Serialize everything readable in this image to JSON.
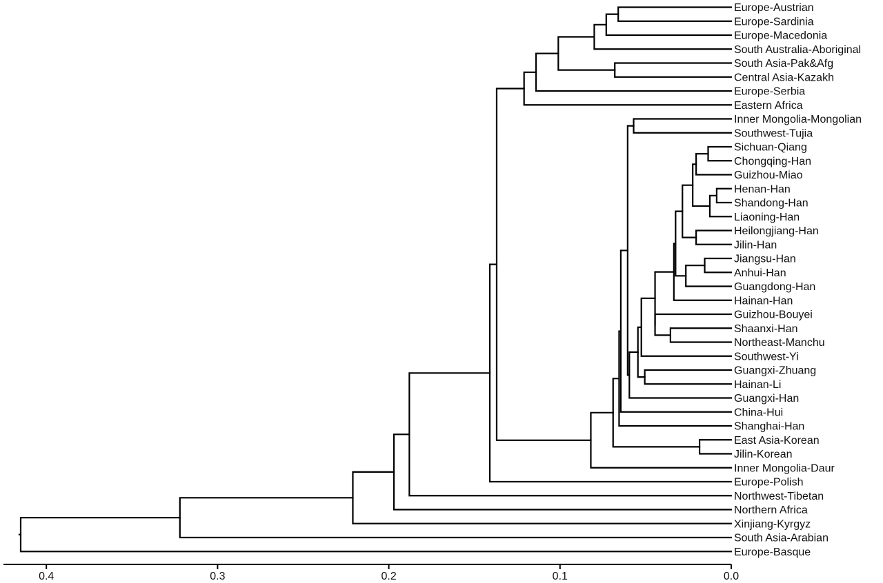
{
  "chart_data": {
    "type": "dendrogram",
    "orientation": "leaves-right",
    "colors": {
      "line": "#000000",
      "text": "#111111",
      "background": "#ffffff"
    },
    "axis": {
      "direction": "reversed",
      "range": [
        0.42,
        0.0
      ],
      "ticks": [
        0.4,
        0.3,
        0.2,
        0.1,
        0.0
      ],
      "tick_labels": [
        "0.4",
        "0.3",
        "0.2",
        "0.1",
        "0.0"
      ]
    },
    "leaves": [
      "Europe-Austrian",
      "Europe-Sardinia",
      "Europe-Macedonia",
      "South Australia-Aboriginal",
      "South Asia-Pak&Afg",
      "Central Asia-Kazakh",
      "Europe-Serbia",
      "Eastern Africa",
      "Inner Mongolia-Mongolian",
      "Southwest-Tujia",
      "Sichuan-Qiang",
      "Chongqing-Han",
      "Guizhou-Miao",
      "Henan-Han",
      "Shandong-Han",
      "Liaoning-Han",
      "Heilongjiang-Han",
      "Jilin-Han",
      "Jiangsu-Han",
      "Anhui-Han",
      "Guangdong-Han",
      "Hainan-Han",
      "Guizhou-Bouyei",
      "Shaanxi-Han",
      "Northeast-Manchu",
      "Southwest-Yi",
      "Guangxi-Zhuang",
      "Hainan-Li",
      "Guangxi-Han",
      "China-Hui",
      "Shanghai-Han",
      "East Asia-Korean",
      "Jilin-Korean",
      "Inner Mongolia-Daur",
      "Europe-Polish",
      "Northwest-Tibetan",
      "Northern Africa",
      "Xinjiang-Kyrgyz",
      "South Asia-Arabian",
      "Europe-Basque"
    ],
    "merges": [
      {
        "id": "n1",
        "height": 0.066,
        "children": [
          "L0",
          "L1"
        ]
      },
      {
        "id": "n2",
        "height": 0.073,
        "children": [
          "n1",
          "L2"
        ]
      },
      {
        "id": "n3",
        "height": 0.08,
        "children": [
          "n2",
          "L3"
        ]
      },
      {
        "id": "n4",
        "height": 0.068,
        "children": [
          "L4",
          "L5"
        ]
      },
      {
        "id": "n5",
        "height": 0.101,
        "children": [
          "n3",
          "n4"
        ]
      },
      {
        "id": "n6",
        "height": 0.114,
        "children": [
          "n5",
          "L6"
        ]
      },
      {
        "id": "n7",
        "height": 0.121,
        "children": [
          "n6",
          "L7"
        ]
      },
      {
        "id": "n8",
        "height": 0.057,
        "children": [
          "L8",
          "L9"
        ]
      },
      {
        "id": "n9",
        "height": 0.0135,
        "children": [
          "L10",
          "L11"
        ]
      },
      {
        "id": "n10",
        "height": 0.0205,
        "children": [
          "n9",
          "L12"
        ]
      },
      {
        "id": "n11",
        "height": 0.0085,
        "children": [
          "L13",
          "L14"
        ]
      },
      {
        "id": "n12",
        "height": 0.0125,
        "children": [
          "n11",
          "L15"
        ]
      },
      {
        "id": "n13",
        "height": 0.0225,
        "children": [
          "n10",
          "n12"
        ]
      },
      {
        "id": "n14",
        "height": 0.0205,
        "children": [
          "L16",
          "L17"
        ]
      },
      {
        "id": "n15",
        "height": 0.0285,
        "children": [
          "n13",
          "n14"
        ]
      },
      {
        "id": "n16",
        "height": 0.0155,
        "children": [
          "L18",
          "L19"
        ]
      },
      {
        "id": "n17",
        "height": 0.0265,
        "children": [
          "n16",
          "L20"
        ]
      },
      {
        "id": "n18",
        "height": 0.0325,
        "children": [
          "n15",
          "n17"
        ]
      },
      {
        "id": "n19",
        "height": 0.0335,
        "children": [
          "n18",
          "L21"
        ]
      },
      {
        "id": "n20",
        "height": 0.0355,
        "children": [
          "L23",
          "L24"
        ]
      },
      {
        "id": "n21",
        "height": 0.0445,
        "children": [
          "L22",
          "n20"
        ]
      },
      {
        "id": "n22",
        "height": 0.0445,
        "children": [
          "n19",
          "n21"
        ]
      },
      {
        "id": "n23",
        "height": 0.0505,
        "children": [
          "L26",
          "L27"
        ]
      },
      {
        "id": "n24",
        "height": 0.0525,
        "children": [
          "n22",
          "L25"
        ]
      },
      {
        "id": "n25",
        "height": 0.0545,
        "children": [
          "n24",
          "n23"
        ]
      },
      {
        "id": "n26",
        "height": 0.0595,
        "children": [
          "n25",
          "L28"
        ]
      },
      {
        "id": "n27",
        "height": 0.0605,
        "children": [
          "n8",
          "n26"
        ]
      },
      {
        "id": "n28",
        "height": 0.0645,
        "children": [
          "n27",
          "L29"
        ]
      },
      {
        "id": "n29",
        "height": 0.0655,
        "children": [
          "n28",
          "L30"
        ]
      },
      {
        "id": "n30",
        "height": 0.0185,
        "children": [
          "L31",
          "L32"
        ]
      },
      {
        "id": "n31",
        "height": 0.069,
        "children": [
          "n29",
          "n30"
        ]
      },
      {
        "id": "n32",
        "height": 0.082,
        "children": [
          "n31",
          "L33"
        ]
      },
      {
        "id": "n33",
        "height": 0.137,
        "children": [
          "n7",
          "n32"
        ]
      },
      {
        "id": "n34",
        "height": 0.141,
        "children": [
          "n33",
          "L34"
        ]
      },
      {
        "id": "n35",
        "height": 0.188,
        "children": [
          "n34",
          "L35"
        ]
      },
      {
        "id": "n36",
        "height": 0.197,
        "children": [
          "n35",
          "L36"
        ]
      },
      {
        "id": "n37",
        "height": 0.221,
        "children": [
          "n36",
          "L37"
        ]
      },
      {
        "id": "n38",
        "height": 0.322,
        "children": [
          "n37",
          "L38"
        ]
      },
      {
        "id": "n39",
        "height": 0.415,
        "children": [
          "n38",
          "L39"
        ]
      }
    ]
  }
}
